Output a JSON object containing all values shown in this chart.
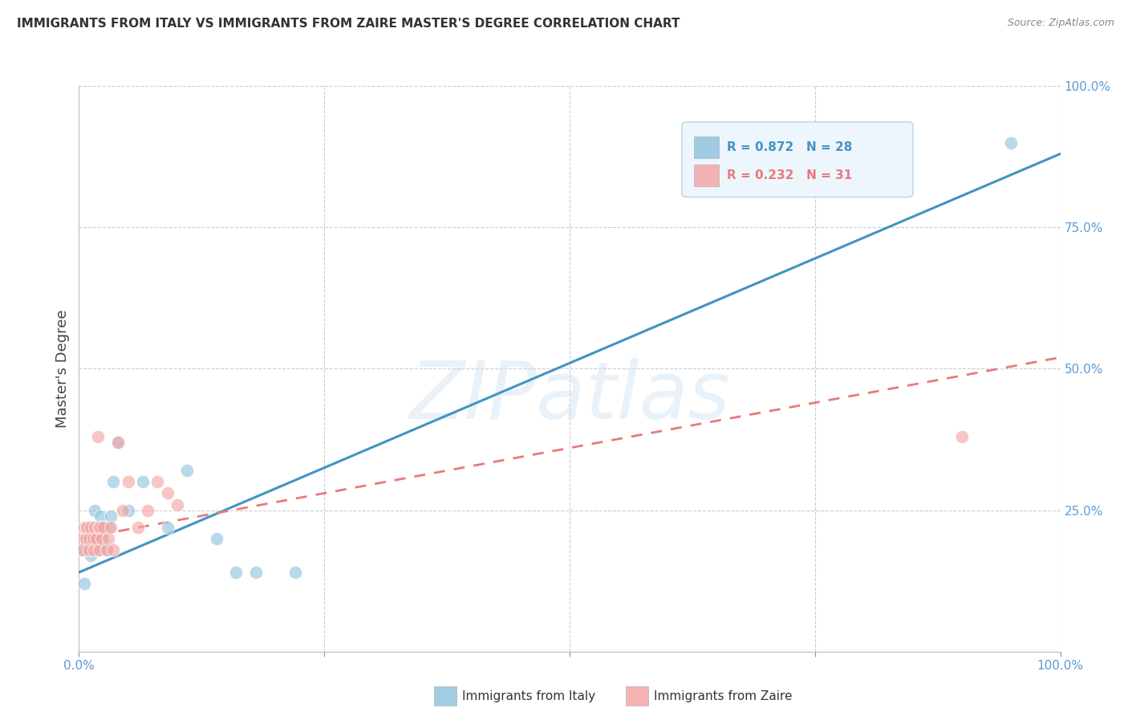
{
  "title": "IMMIGRANTS FROM ITALY VS IMMIGRANTS FROM ZAIRE MASTER'S DEGREE CORRELATION CHART",
  "source": "Source: ZipAtlas.com",
  "ylabel": "Master's Degree",
  "xlim": [
    0,
    100
  ],
  "ylim": [
    0,
    100
  ],
  "xtick_positions": [
    0,
    25,
    50,
    75,
    100
  ],
  "xticklabels": [
    "0.0%",
    "",
    "",
    "",
    "100.0%"
  ],
  "ytick_positions": [
    25,
    50,
    75,
    100
  ],
  "yticklabels": [
    "25.0%",
    "50.0%",
    "75.0%",
    "100.0%"
  ],
  "italy_color": "#92c5de",
  "italy_edge_color": "#92c5de",
  "zaire_color": "#f4a6a6",
  "zaire_edge_color": "#f4a6a6",
  "italy_R": 0.872,
  "italy_N": 28,
  "zaire_R": 0.232,
  "zaire_N": 31,
  "regression_italy_color": "#4393c3",
  "regression_zaire_color": "#e87a7a",
  "watermark_text": "ZIPatlas",
  "watermark_color": "#c8dff0",
  "background_color": "#ffffff",
  "grid_color": "#cccccc",
  "title_color": "#333333",
  "source_color": "#888888",
  "tick_color": "#5b9bd5",
  "italy_x": [
    0.3,
    0.5,
    0.8,
    1.0,
    1.2,
    1.4,
    1.5,
    1.6,
    1.8,
    2.0,
    2.0,
    2.2,
    2.3,
    2.5,
    2.8,
    3.0,
    3.2,
    3.5,
    4.0,
    5.0,
    6.5,
    9.0,
    11.0,
    14.0,
    16.0,
    18.0,
    22.0,
    95.0
  ],
  "italy_y": [
    18.0,
    12.0,
    20.0,
    22.0,
    17.0,
    20.0,
    22.0,
    25.0,
    20.0,
    22.0,
    18.0,
    24.0,
    20.0,
    22.0,
    18.0,
    22.0,
    24.0,
    30.0,
    37.0,
    25.0,
    30.0,
    22.0,
    32.0,
    20.0,
    14.0,
    14.0,
    14.0,
    90.0
  ],
  "zaire_x": [
    0.2,
    0.4,
    0.5,
    0.7,
    0.8,
    1.0,
    1.0,
    1.2,
    1.4,
    1.5,
    1.6,
    1.8,
    1.9,
    2.0,
    2.1,
    2.2,
    2.3,
    2.5,
    2.8,
    3.0,
    3.2,
    3.5,
    4.0,
    4.5,
    5.0,
    6.0,
    7.0,
    8.0,
    9.0,
    10.0,
    90.0
  ],
  "zaire_y": [
    20.0,
    18.0,
    22.0,
    20.0,
    22.0,
    20.0,
    18.0,
    22.0,
    20.0,
    18.0,
    22.0,
    20.0,
    38.0,
    22.0,
    18.0,
    22.0,
    20.0,
    22.0,
    18.0,
    20.0,
    22.0,
    18.0,
    37.0,
    25.0,
    30.0,
    22.0,
    25.0,
    30.0,
    28.0,
    26.0,
    38.0
  ],
  "italy_line_x0": 0,
  "italy_line_y0": 14,
  "italy_line_x1": 100,
  "italy_line_y1": 88,
  "zaire_line_x0": 0,
  "zaire_line_y0": 20,
  "zaire_line_x1": 100,
  "zaire_line_y1": 52
}
